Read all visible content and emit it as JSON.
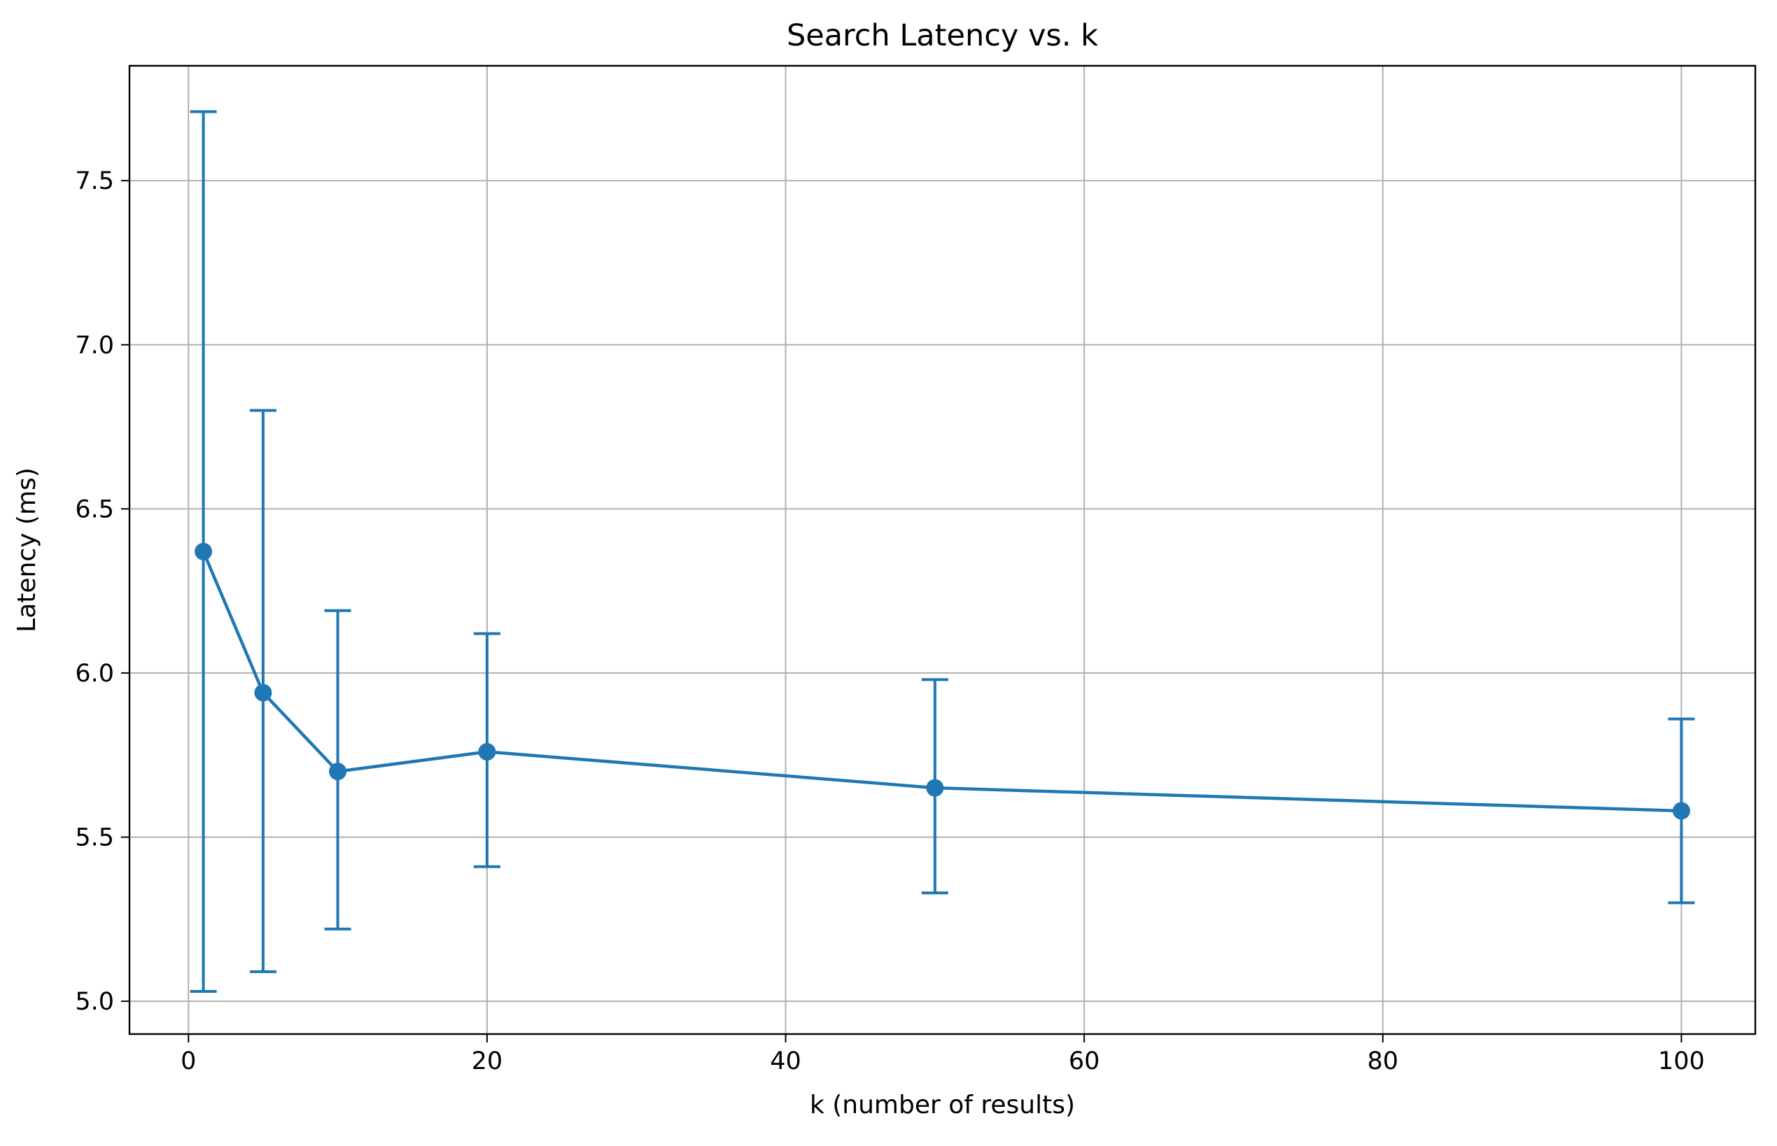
{
  "chart_data": {
    "type": "line",
    "title": "Search Latency vs. k",
    "xlabel": "k (number of results)",
    "ylabel": "Latency (ms)",
    "xlim": [
      -3.95,
      104.95
    ],
    "ylim": [
      4.9,
      7.85
    ],
    "x_ticks": [
      0,
      20,
      40,
      60,
      80,
      100
    ],
    "x_tick_labels": [
      "0",
      "20",
      "40",
      "60",
      "80",
      "100"
    ],
    "y_ticks": [
      5.0,
      5.5,
      6.0,
      6.5,
      7.0,
      7.5
    ],
    "y_tick_labels": [
      "5.0",
      "5.5",
      "6.0",
      "6.5",
      "7.0",
      "7.5"
    ],
    "grid": true,
    "legend": "none",
    "series": [
      {
        "color": "#1f77b4",
        "marker": "circle",
        "error_bars": true,
        "points": [
          {
            "x": 1,
            "y": 6.37,
            "err_low": 5.03,
            "err_high": 7.71
          },
          {
            "x": 5,
            "y": 5.94,
            "err_low": 5.09,
            "err_high": 6.8
          },
          {
            "x": 10,
            "y": 5.7,
            "err_low": 5.22,
            "err_high": 6.19
          },
          {
            "x": 20,
            "y": 5.76,
            "err_low": 5.41,
            "err_high": 6.12
          },
          {
            "x": 50,
            "y": 5.65,
            "err_low": 5.33,
            "err_high": 5.98
          },
          {
            "x": 100,
            "y": 5.58,
            "err_low": 5.3,
            "err_high": 5.86
          }
        ]
      }
    ]
  }
}
